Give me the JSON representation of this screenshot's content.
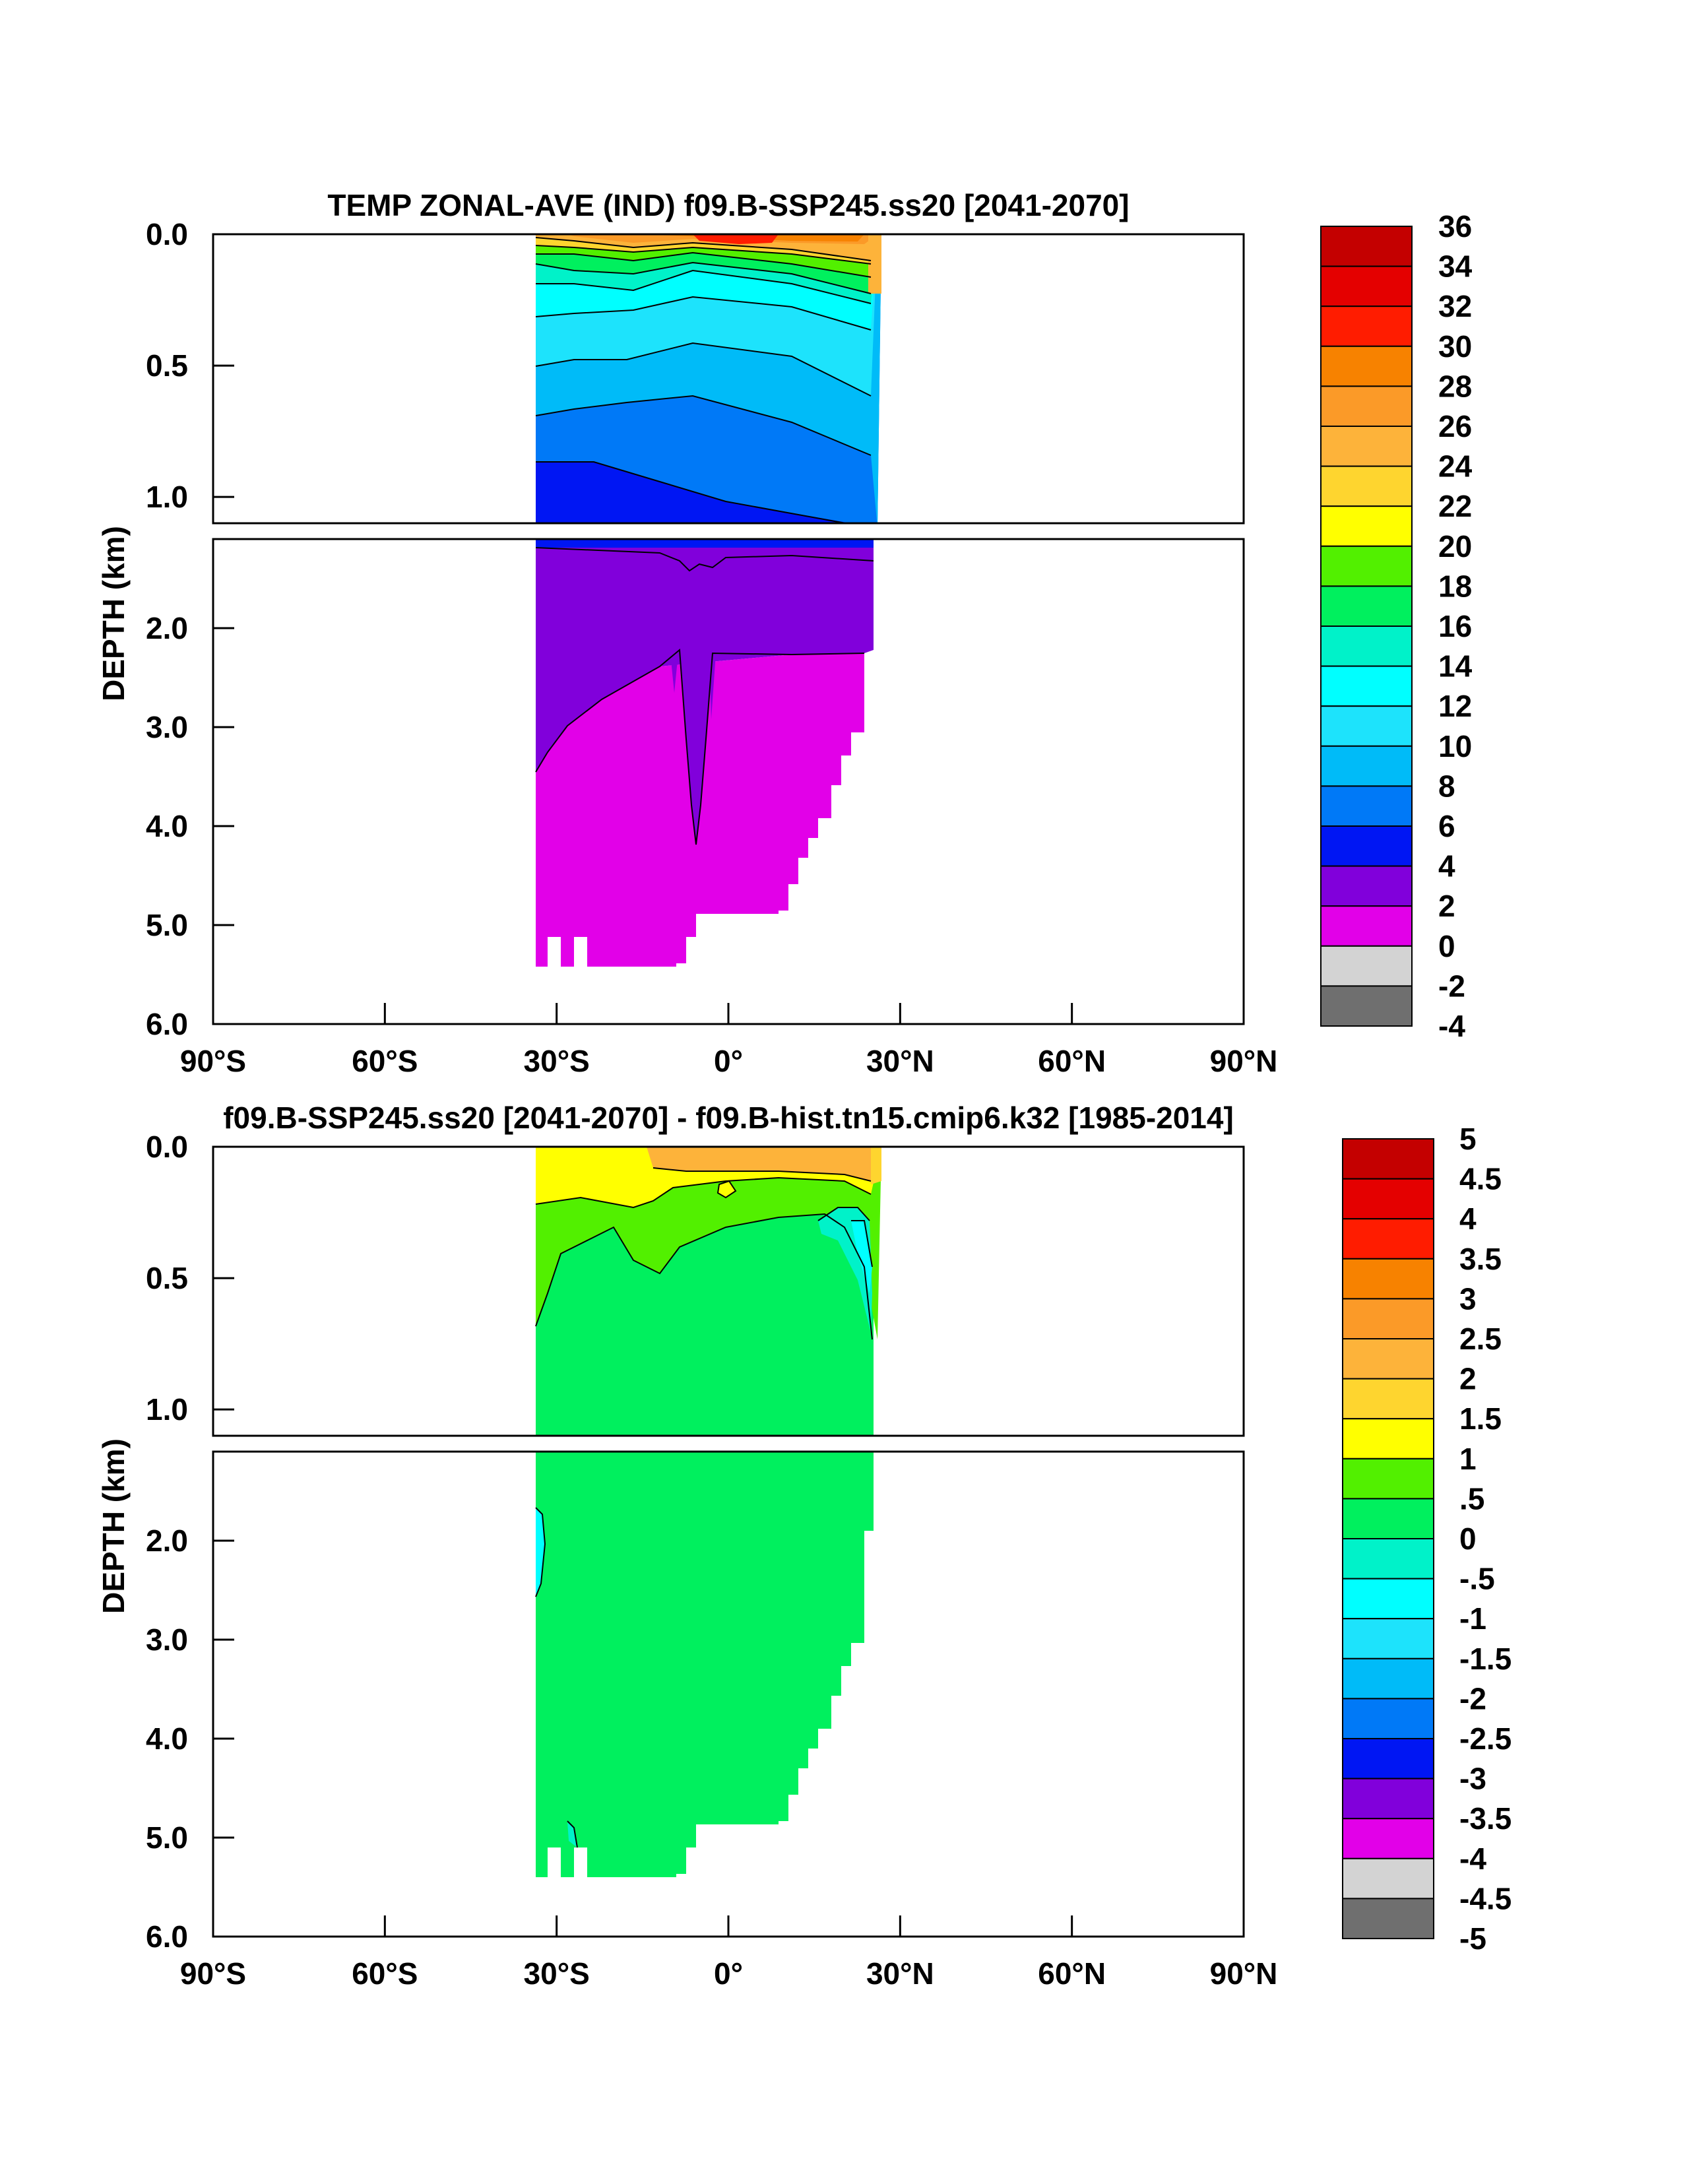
{
  "chart_data": [
    {
      "type": "contour",
      "title": "TEMP ZONAL-AVE (IND) f09.B-SSP245.ss20 [2041-2070]",
      "ylabel": "DEPTH (km)",
      "x_ticks": [
        "90°S",
        "60°S",
        "30°S",
        "0°",
        "30°N",
        "60°N",
        "90°N"
      ],
      "x_tick_values": [
        -90,
        -60,
        -30,
        0,
        30,
        60,
        90
      ],
      "xlim": [
        -90,
        90
      ],
      "upper_ticks": [
        "0.0",
        "0.5",
        "1.0"
      ],
      "upper_tick_values": [
        0,
        0.5,
        1.0
      ],
      "upper_ylim": [
        0,
        1.1
      ],
      "lower_ticks": [
        "2.0",
        "3.0",
        "4.0",
        "5.0",
        "6.0"
      ],
      "lower_tick_values": [
        2,
        3,
        4,
        5,
        6
      ],
      "lower_ylim": [
        1.1,
        6
      ],
      "colorbar_labels": [
        "36",
        "34",
        "32",
        "30",
        "28",
        "26",
        "24",
        "22",
        "20",
        "18",
        "16",
        "14",
        "12",
        "10",
        "8",
        "6",
        "4",
        "2",
        "0",
        "-2",
        "-4"
      ],
      "colorbar_colors": [
        "#c40000",
        "#e40000",
        "#ff1c00",
        "#f78200",
        "#fb9a28",
        "#fdb33a",
        "#fed52f",
        "#ffff00",
        "#52f000",
        "#00f05e",
        "#00f2c9",
        "#00ffff",
        "#1de3fc",
        "#00bbf8",
        "#0079f7",
        "#0016f3",
        "#8100db",
        "#e200e8",
        "#d3d3d3",
        "#6f6f6f"
      ],
      "land_mask": {
        "lon_min": -34,
        "lon_max": 25
      },
      "depth_profile_upper": [
        {
          "lat": -34,
          "depth": 0.0,
          "value": 24
        },
        {
          "lat": 0,
          "depth": 0.0,
          "value": 30
        },
        {
          "lat": 20,
          "depth": 0.0,
          "value": 28
        },
        {
          "lat": -34,
          "depth": 0.2,
          "value": 14
        },
        {
          "lat": 0,
          "depth": 0.2,
          "value": 16
        },
        {
          "lat": -34,
          "depth": 0.6,
          "value": 8
        },
        {
          "lat": 0,
          "depth": 0.6,
          "value": 10
        },
        {
          "lat": -34,
          "depth": 0.9,
          "value": 5
        },
        {
          "lat": 20,
          "depth": 1.0,
          "value": 7
        }
      ],
      "depth_profile_lower": [
        {
          "lat": -20,
          "depth": 2.0,
          "value": 3
        },
        {
          "lat": -20,
          "depth": 3.0,
          "value": 1
        },
        {
          "lat": -6,
          "depth": 4.2,
          "value": 2
        },
        {
          "lat": 0,
          "depth": 5.0,
          "value": 1
        }
      ]
    },
    {
      "type": "contour",
      "title": "f09.B-SSP245.ss20 [2041-2070] - f09.B-hist.tn15.cmip6.k32 [1985-2014]",
      "ylabel": "DEPTH (km)",
      "x_ticks": [
        "90°S",
        "60°S",
        "30°S",
        "0°",
        "30°N",
        "60°N",
        "90°N"
      ],
      "x_tick_values": [
        -90,
        -60,
        -30,
        0,
        30,
        60,
        90
      ],
      "xlim": [
        -90,
        90
      ],
      "upper_ticks": [
        "0.0",
        "0.5",
        "1.0"
      ],
      "upper_tick_values": [
        0,
        0.5,
        1.0
      ],
      "upper_ylim": [
        0,
        1.1
      ],
      "lower_ticks": [
        "2.0",
        "3.0",
        "4.0",
        "5.0",
        "6.0"
      ],
      "lower_tick_values": [
        2,
        3,
        4,
        5,
        6
      ],
      "lower_ylim": [
        1.1,
        6
      ],
      "colorbar_labels": [
        "5",
        "4.5",
        "4",
        "3.5",
        "3",
        "2.5",
        "2",
        "1.5",
        "1",
        ".5",
        "0",
        "-.5",
        "-1",
        "-1.5",
        "-2",
        "-2.5",
        "-3",
        "-3.5",
        "-4",
        "-4.5",
        "-5"
      ],
      "colorbar_colors": [
        "#c40000",
        "#e40000",
        "#ff1c00",
        "#f78200",
        "#fb9a28",
        "#fdb33a",
        "#fed52f",
        "#ffff00",
        "#52f000",
        "#00f05e",
        "#00f2c9",
        "#00ffff",
        "#1de3fc",
        "#00bbf8",
        "#0079f7",
        "#0016f3",
        "#8100db",
        "#e200e8",
        "#d3d3d3",
        "#6f6f6f"
      ],
      "land_mask": {
        "lon_min": -34,
        "lon_max": 25
      },
      "depth_profile_upper": [
        {
          "lat": -20,
          "depth": 0.05,
          "value": 1.8
        },
        {
          "lat": -20,
          "depth": 0.15,
          "value": 1.2
        },
        {
          "lat": -20,
          "depth": 0.35,
          "value": 0.7
        },
        {
          "lat": 0,
          "depth": 0.6,
          "value": 0.2
        },
        {
          "lat": 20,
          "depth": 0.3,
          "value": -0.3
        }
      ],
      "depth_profile_lower": [
        {
          "lat": -33,
          "depth": 2.0,
          "value": -0.2
        },
        {
          "lat": 0,
          "depth": 3.0,
          "value": 0.2
        }
      ]
    }
  ]
}
